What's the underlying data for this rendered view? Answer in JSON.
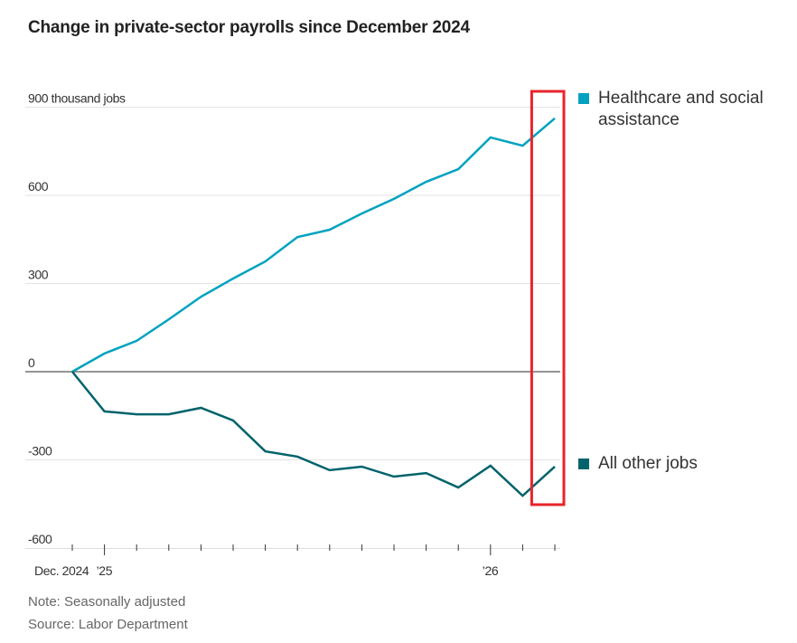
{
  "chart_data": {
    "type": "line",
    "title": "Change in private-sector payrolls since December 2024",
    "ylabel_unit": "thousand jobs",
    "ylim": [
      -600,
      900
    ],
    "yticks": [
      -600,
      -300,
      0,
      300,
      600,
      900
    ],
    "ytick_labels": [
      "-600",
      "-300",
      "0",
      "300",
      "600",
      "900 thousand jobs"
    ],
    "x": [
      "2024-12",
      "2025-01",
      "2025-02",
      "2025-03",
      "2025-04",
      "2025-05",
      "2025-06",
      "2025-07",
      "2025-08",
      "2025-09",
      "2025-10",
      "2025-11",
      "2025-12",
      "2026-01",
      "2026-02",
      "2026-03"
    ],
    "xtick_labels": [
      {
        "at": "2024-12",
        "label": "Dec. 2024"
      },
      {
        "at": "2025-01",
        "label": "’25"
      },
      {
        "at": "2026-01",
        "label": "’26"
      }
    ],
    "grid": true,
    "legend": "right",
    "series": [
      {
        "name": "Healthcare and social assistance",
        "color": "#00a2c0",
        "values": [
          0,
          62,
          105,
          178,
          255,
          317,
          375,
          458,
          483,
          538,
          588,
          646,
          689,
          797,
          769,
          862
        ]
      },
      {
        "name": "All other jobs",
        "color": "#00636b",
        "values": [
          0,
          -135,
          -145,
          -145,
          -123,
          -166,
          -271,
          -289,
          -335,
          -323,
          -357,
          -345,
          -394,
          -320,
          -422,
          -323
        ]
      }
    ],
    "highlight": {
      "from": "2026-02",
      "to": "2026-03",
      "color": "#e8242b"
    }
  },
  "notes": {
    "note": "Note: Seasonally adjusted",
    "source": "Source: Labor Department"
  }
}
